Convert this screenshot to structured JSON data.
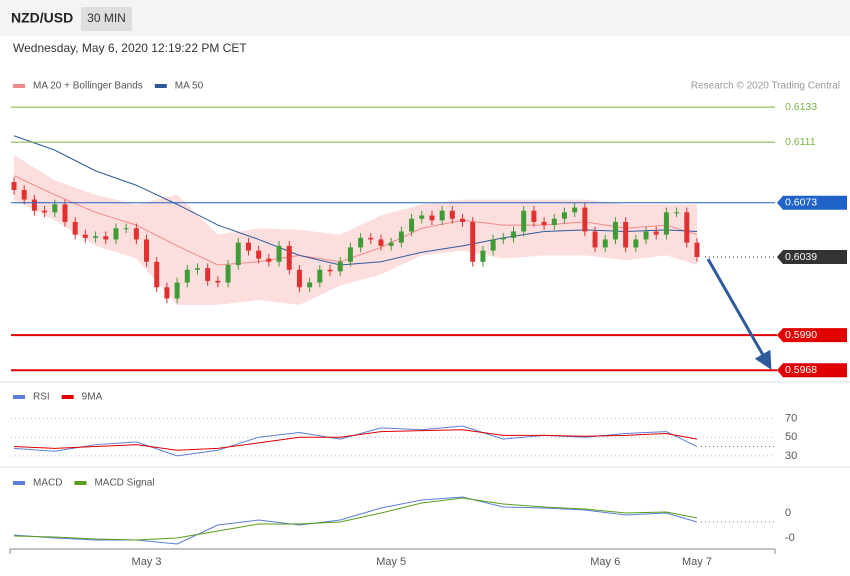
{
  "header": {
    "symbol": "NZD/USD",
    "interval": "30 MIN",
    "timestamp": "Wednesday, May 6, 2020 12:19:22 PM CET"
  },
  "chart_data": [
    {
      "type": "candlestick",
      "credit": "Research © 2020 Trading Central",
      "categories": [
        null,
        null,
        null,
        null,
        null,
        null,
        null,
        null,
        null,
        null,
        null,
        null,
        null,
        "May 3",
        null,
        null,
        null,
        null,
        null,
        null,
        null,
        null,
        null,
        null,
        null,
        null,
        null,
        null,
        null,
        null,
        null,
        null,
        null,
        null,
        null,
        null,
        null,
        "May 5",
        null,
        null,
        null,
        null,
        null,
        null,
        null,
        null,
        null,
        null,
        null,
        null,
        null,
        null,
        null,
        null,
        null,
        null,
        null,
        null,
        "May 6",
        null,
        null,
        null,
        null,
        null,
        null,
        null,
        null,
        "May 7"
      ],
      "open": [
        0.6086,
        0.6081,
        0.6075,
        0.6068,
        0.6067,
        0.6072,
        0.6061,
        0.6053,
        0.6051,
        0.6052,
        0.605,
        0.6057,
        0.6057,
        0.605,
        0.6036,
        0.602,
        0.6013,
        0.6023,
        0.6031,
        0.6032,
        0.6024,
        0.6023,
        0.6034,
        0.6048,
        0.6043,
        0.6038,
        0.6036,
        0.6046,
        0.6031,
        0.602,
        0.6023,
        0.6031,
        0.603,
        0.6036,
        0.6045,
        0.6051,
        0.605,
        0.6046,
        0.6048,
        0.6055,
        0.6063,
        0.6065,
        0.6062,
        0.6068,
        0.6063,
        0.6061,
        0.6036,
        0.6043,
        0.605,
        0.6051,
        0.6055,
        0.6068,
        0.6061,
        0.6059,
        0.6063,
        0.6067,
        0.607,
        0.6055,
        0.6045,
        0.605,
        0.6061,
        0.6045,
        0.605,
        0.6055,
        0.6053,
        0.6067,
        0.6067,
        0.6048
      ],
      "high": [
        0.6089,
        0.6084,
        0.6078,
        0.6071,
        0.6075,
        0.6075,
        0.6064,
        0.6056,
        0.6055,
        0.6055,
        0.606,
        0.606,
        0.606,
        0.6053,
        0.6039,
        0.6023,
        0.6026,
        0.6034,
        0.6035,
        0.6035,
        0.6027,
        0.6037,
        0.6051,
        0.6051,
        0.6046,
        0.6041,
        0.6049,
        0.6049,
        0.6034,
        0.6026,
        0.6034,
        0.6034,
        0.6039,
        0.6048,
        0.6054,
        0.6054,
        0.6053,
        0.6051,
        0.6058,
        0.6066,
        0.6068,
        0.6068,
        0.6071,
        0.6071,
        0.6066,
        0.6064,
        0.6046,
        0.6053,
        0.6054,
        0.6058,
        0.6071,
        0.6071,
        0.6064,
        0.6066,
        0.607,
        0.6073,
        0.6073,
        0.6058,
        0.6053,
        0.6064,
        0.6064,
        0.6053,
        0.6058,
        0.6058,
        0.607,
        0.607,
        0.607,
        0.6051
      ],
      "low": [
        0.6078,
        0.6072,
        0.6065,
        0.6064,
        0.6064,
        0.6058,
        0.605,
        0.6048,
        0.6048,
        0.6047,
        0.6047,
        0.6054,
        0.6047,
        0.6033,
        0.6017,
        0.601,
        0.601,
        0.602,
        0.6028,
        0.6021,
        0.602,
        0.602,
        0.6031,
        0.604,
        0.6035,
        0.6033,
        0.6033,
        0.6028,
        0.6017,
        0.6017,
        0.602,
        0.6027,
        0.6027,
        0.6033,
        0.6042,
        0.6047,
        0.6043,
        0.6043,
        0.6045,
        0.6052,
        0.606,
        0.6059,
        0.6059,
        0.606,
        0.6058,
        0.6033,
        0.6033,
        0.604,
        0.6047,
        0.6048,
        0.6052,
        0.6058,
        0.6056,
        0.6056,
        0.606,
        0.6064,
        0.6052,
        0.6042,
        0.6042,
        0.6047,
        0.6042,
        0.6042,
        0.6047,
        0.605,
        0.605,
        0.6064,
        0.6045,
        0.6036
      ],
      "close": [
        0.6081,
        0.6075,
        0.6068,
        0.6067,
        0.6072,
        0.6061,
        0.6053,
        0.6051,
        0.6052,
        0.605,
        0.6057,
        0.6057,
        0.605,
        0.6036,
        0.602,
        0.6013,
        0.6023,
        0.6031,
        0.6032,
        0.6024,
        0.6023,
        0.6034,
        0.6048,
        0.6043,
        0.6038,
        0.6036,
        0.6046,
        0.6031,
        0.602,
        0.6023,
        0.6031,
        0.603,
        0.6036,
        0.6045,
        0.6051,
        0.605,
        0.6046,
        0.6048,
        0.6055,
        0.6063,
        0.6065,
        0.6062,
        0.6068,
        0.6063,
        0.6061,
        0.6036,
        0.6043,
        0.605,
        0.6051,
        0.6055,
        0.6068,
        0.6061,
        0.6059,
        0.6063,
        0.6067,
        0.607,
        0.6055,
        0.6045,
        0.605,
        0.6061,
        0.6045,
        0.605,
        0.6055,
        0.6053,
        0.6067,
        0.6067,
        0.6048,
        0.6039
      ],
      "up_color": "#3f9b35",
      "down_color": "#e03030",
      "series": [
        {
          "name": "MA 20 + Bollinger Bands",
          "color": "#f08a8a",
          "band_color": "#fddede",
          "x": [
            0,
            4,
            8,
            12,
            16,
            20,
            24,
            28,
            32,
            36,
            40,
            44,
            48,
            52,
            56,
            60,
            64,
            67
          ],
          "values": [
            0.609,
            0.6078,
            0.6067,
            0.6059,
            0.6046,
            0.6034,
            0.6036,
            0.604,
            0.6036,
            0.6045,
            0.6057,
            0.6062,
            0.6059,
            0.6059,
            0.6061,
            0.6057,
            0.6059,
            0.6053
          ],
          "upper": [
            0.6103,
            0.6087,
            0.6078,
            0.6072,
            0.6078,
            0.6053,
            0.6057,
            0.6056,
            0.6053,
            0.6065,
            0.6072,
            0.6075,
            0.6075,
            0.6075,
            0.6075,
            0.6072,
            0.6072,
            0.6072
          ],
          "lower": [
            0.6075,
            0.6062,
            0.6046,
            0.6038,
            0.6009,
            0.6009,
            0.6012,
            0.6009,
            0.6021,
            0.6028,
            0.604,
            0.6043,
            0.6038,
            0.604,
            0.604,
            0.6037,
            0.604,
            0.6034
          ]
        },
        {
          "name": "MA 50",
          "color": "#2e5a9c",
          "x": [
            0,
            4,
            8,
            12,
            16,
            20,
            24,
            28,
            32,
            36,
            40,
            44,
            48,
            52,
            56,
            60,
            64,
            67
          ],
          "values": [
            0.6115,
            0.6106,
            0.6093,
            0.6084,
            0.6072,
            0.6059,
            0.605,
            0.604,
            0.6034,
            0.6036,
            0.6042,
            0.6046,
            0.6051,
            0.6055,
            0.6056,
            0.6055,
            0.6056,
            0.6055
          ]
        }
      ],
      "levels": [
        {
          "value": 0.6133,
          "label": "0.6133",
          "color": "#7cb342",
          "boxed": false,
          "style": "solid"
        },
        {
          "value": 0.6111,
          "label": "0.6111",
          "color": "#7cb342",
          "boxed": false,
          "style": "solid"
        },
        {
          "value": 0.6073,
          "label": "0.6073",
          "color": "#1f63c6",
          "boxed": true,
          "style": "solid"
        },
        {
          "value": 0.6039,
          "label": "0.6039",
          "color": "#333333",
          "boxed": true,
          "style": "dotted"
        },
        {
          "value": 0.599,
          "label": "0.5990",
          "color": "#e00000",
          "boxed": true,
          "style": "thick"
        },
        {
          "value": 0.5968,
          "label": "0.5968",
          "color": "#e00000",
          "boxed": true,
          "style": "thick"
        }
      ],
      "ylim": [
        0.596,
        0.616
      ]
    },
    {
      "type": "line",
      "series": [
        {
          "name": "RSI",
          "color": "#5b7fd6",
          "x": [
            0,
            4,
            8,
            12,
            16,
            20,
            24,
            28,
            32,
            36,
            40,
            44,
            48,
            52,
            56,
            60,
            64,
            67
          ],
          "values": [
            38,
            35,
            42,
            45,
            30,
            36,
            50,
            55,
            48,
            60,
            58,
            62,
            48,
            52,
            50,
            54,
            56,
            40
          ]
        },
        {
          "name": "9MA",
          "color": "#e00000",
          "x": [
            0,
            4,
            8,
            12,
            16,
            20,
            24,
            28,
            32,
            36,
            40,
            44,
            48,
            52,
            56,
            60,
            64,
            67
          ],
          "values": [
            40,
            38,
            40,
            42,
            36,
            38,
            44,
            50,
            50,
            56,
            57,
            58,
            52,
            52,
            51,
            52,
            54,
            48
          ]
        }
      ],
      "ylim": [
        20,
        108
      ],
      "yticks": [
        30,
        50,
        70
      ],
      "grid": true
    },
    {
      "type": "line",
      "series": [
        {
          "name": "MACD",
          "color": "#5b7fd6",
          "x": [
            0,
            4,
            8,
            12,
            16,
            20,
            24,
            28,
            32,
            36,
            40,
            44,
            48,
            52,
            56,
            60,
            64,
            67
          ],
          "values": [
            -0.00044,
            -0.0005,
            -0.00054,
            -0.00054,
            -0.00062,
            -0.00024,
            -0.00014,
            -0.00024,
            -0.00014,
            0.0001,
            0.00026,
            0.00032,
            0.00012,
            0.0001,
            6e-05,
            -4e-05,
            0,
            -0.00018
          ]
        },
        {
          "name": "MACD Signal",
          "color": "#5a9e1a",
          "x": [
            0,
            4,
            8,
            12,
            16,
            20,
            24,
            28,
            32,
            36,
            40,
            44,
            48,
            52,
            56,
            60,
            64,
            67
          ],
          "values": [
            -0.00046,
            -0.00048,
            -0.00052,
            -0.00054,
            -0.0005,
            -0.00036,
            -0.00022,
            -0.00022,
            -0.00018,
            0,
            0.0002,
            0.0003,
            0.00018,
            0.00012,
            8e-05,
            0,
            2e-05,
            -0.0001
          ]
        }
      ],
      "ylim": [
        -0.0007,
        0.0009
      ],
      "yticks": [
        0,
        {
          "value": -0.0005,
          "label": "-0"
        }
      ],
      "grid": false
    }
  ]
}
